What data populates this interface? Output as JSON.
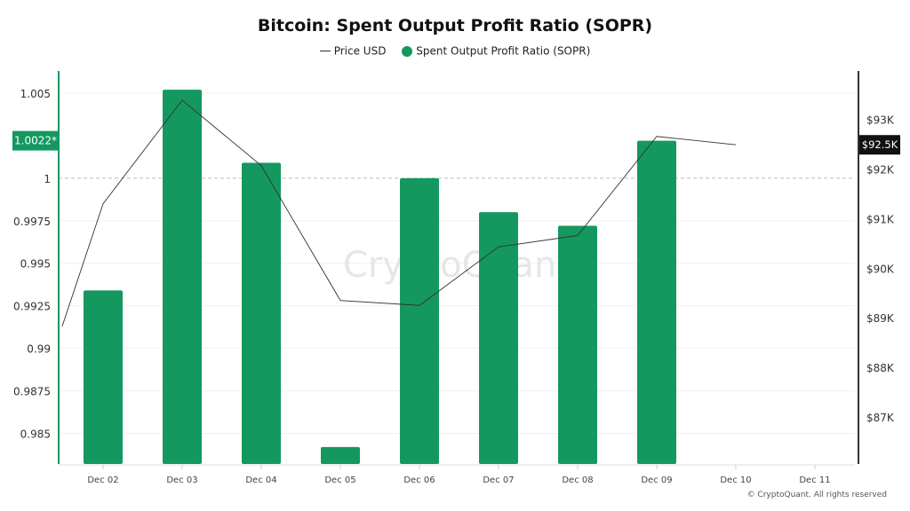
{
  "chart_data": {
    "type": "bar",
    "title": "Bitcoin: Spent Output Profit Ratio (SOPR)",
    "categories": [
      "Dec 02",
      "Dec 03",
      "Dec 04",
      "Dec 05",
      "Dec 06",
      "Dec 07",
      "Dec 08",
      "Dec 09",
      "Dec 10",
      "Dec 11"
    ],
    "series": [
      {
        "name": "Spent Output Profit Ratio (SOPR)",
        "type": "bar",
        "axis": "left",
        "color": "#14985f",
        "values": [
          0.9934,
          1.0052,
          1.0009,
          0.9842,
          1.0,
          0.998,
          0.9972,
          1.0022,
          null,
          null
        ]
      },
      {
        "name": "Price USD",
        "type": "line",
        "axis": "right",
        "color": "#333333",
        "x": [
          "Dec 01",
          "Dec 02",
          "Dec 03",
          "Dec 04",
          "Dec 05",
          "Dec 06",
          "Dec 07",
          "Dec 08",
          "Dec 09",
          "Dec 10"
        ],
        "values": [
          88830,
          91300,
          93390,
          92070,
          89350,
          89250,
          90430,
          90660,
          92660,
          92490
        ]
      }
    ],
    "left_axis": {
      "ylim": [
        0.9832,
        1.0063
      ],
      "ticks": [
        "0.985",
        "0.9875",
        "0.99",
        "0.9925",
        "0.995",
        "0.9975",
        "1",
        "1.005"
      ],
      "tick_values": [
        0.985,
        0.9875,
        0.99,
        0.9925,
        0.995,
        0.9975,
        1,
        1.005
      ],
      "reference_line": 1,
      "current_label": "1.0022*",
      "current_value": 1.0022
    },
    "right_axis": {
      "ylim": [
        86050,
        93980
      ],
      "ticks": [
        "$87K",
        "$88K",
        "$89K",
        "$90K",
        "$91K",
        "$92K",
        "$93K"
      ],
      "tick_values": [
        87000,
        88000,
        89000,
        90000,
        91000,
        92000,
        93000
      ],
      "current_label": "$92.5K",
      "current_value": 92490
    },
    "grid": true,
    "legend_position": "top-center",
    "watermark": "CryptoQuant"
  },
  "copyright": "© CryptoQuant. All rights reserved"
}
